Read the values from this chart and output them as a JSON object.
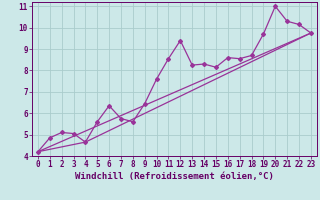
{
  "xlabel": "Windchill (Refroidissement éolien,°C)",
  "bg_color": "#cce8e8",
  "grid_color": "#aacccc",
  "line_color": "#993399",
  "xlim": [
    -0.5,
    23.5
  ],
  "ylim": [
    4,
    11.2
  ],
  "xticks": [
    0,
    1,
    2,
    3,
    4,
    5,
    6,
    7,
    8,
    9,
    10,
    11,
    12,
    13,
    14,
    15,
    16,
    17,
    18,
    19,
    20,
    21,
    22,
    23
  ],
  "yticks": [
    4,
    5,
    6,
    7,
    8,
    9,
    10,
    11
  ],
  "line1_x": [
    0,
    1,
    2,
    3,
    4,
    5,
    6,
    7,
    8,
    9,
    10,
    11,
    12,
    13,
    14,
    15,
    16,
    17,
    18,
    19,
    20,
    21,
    22,
    23
  ],
  "line1_y": [
    4.2,
    4.85,
    5.1,
    5.05,
    4.65,
    5.6,
    6.35,
    5.75,
    5.6,
    6.45,
    7.6,
    8.55,
    9.4,
    8.25,
    8.3,
    8.15,
    8.6,
    8.55,
    8.7,
    9.7,
    11.0,
    10.3,
    10.15,
    9.75
  ],
  "line2_x": [
    0,
    23
  ],
  "line2_y": [
    4.2,
    9.75
  ],
  "line3_x": [
    0,
    4,
    23
  ],
  "line3_y": [
    4.2,
    4.65,
    9.75
  ],
  "font_color": "#660066",
  "tick_font_size": 5.5,
  "label_font_size": 6.5
}
